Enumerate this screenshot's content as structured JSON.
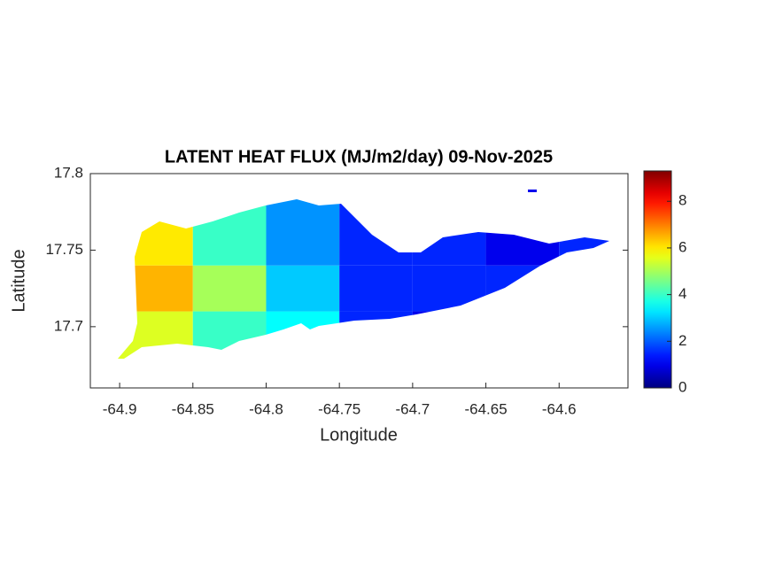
{
  "chart_data": {
    "type": "heatmap",
    "title": "LATENT HEAT FLUX (MJ/m2/day) 09-Nov-2025",
    "x_label": "Longitude",
    "y_label": "Latitude",
    "xlim": [
      -64.92,
      -64.553
    ],
    "ylim": [
      17.66,
      17.8
    ],
    "xticks": [
      -64.9,
      -64.85,
      -64.8,
      -64.75,
      -64.7,
      -64.65,
      -64.6
    ],
    "yticks": [
      17.7,
      17.75,
      17.8
    ],
    "x_edges": [
      -64.9,
      -64.85,
      -64.8,
      -64.75,
      -64.7,
      -64.65,
      -64.6,
      -64.55
    ],
    "y_edges": [
      17.68,
      17.71,
      17.74,
      17.78
    ],
    "z": [
      [
        5.5,
        4,
        3.5,
        1.5,
        1,
        1,
        1
      ],
      [
        6.5,
        5,
        3,
        1.5,
        1.5,
        1.5,
        1
      ],
      [
        6,
        4,
        2.5,
        1.5,
        1.5,
        1,
        1.5
      ]
    ],
    "colormap": "jet",
    "clim": [
      0,
      9.3
    ],
    "cticks": [
      0,
      2,
      4,
      6,
      8
    ]
  }
}
